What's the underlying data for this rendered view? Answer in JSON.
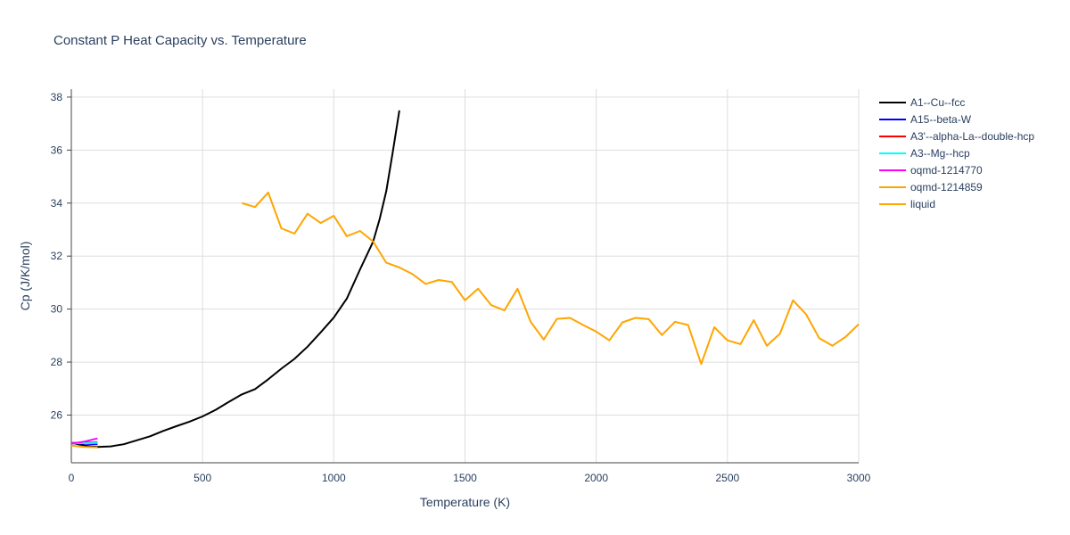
{
  "chart_data": {
    "type": "line",
    "title": "Constant P Heat Capacity vs. Temperature",
    "xlabel": "Temperature (K)",
    "ylabel": "Cp (J/K/mol)",
    "xlim": [
      0,
      3000
    ],
    "ylim": [
      24.2,
      38.3
    ],
    "xticks": [
      0,
      500,
      1000,
      1500,
      2000,
      2500,
      3000
    ],
    "xtick_labels": [
      "0",
      "500",
      "1000",
      "1500",
      "2000",
      "2500",
      "3000"
    ],
    "yticks": [
      26,
      28,
      30,
      32,
      34,
      36,
      38
    ],
    "ytick_labels": [
      "26",
      "28",
      "30",
      "32",
      "34",
      "36",
      "38"
    ],
    "grid": true,
    "legend_position": "right",
    "series": [
      {
        "name": "A1--Cu--fcc",
        "color": "#000000",
        "points": [
          [
            0,
            24.95
          ],
          [
            50,
            24.85
          ],
          [
            100,
            24.8
          ],
          [
            150,
            24.82
          ],
          [
            200,
            24.9
          ],
          [
            300,
            25.2
          ],
          [
            350,
            25.4
          ],
          [
            400,
            25.58
          ],
          [
            450,
            25.75
          ],
          [
            500,
            25.95
          ],
          [
            550,
            26.2
          ],
          [
            600,
            26.5
          ],
          [
            650,
            26.78
          ],
          [
            700,
            26.98
          ],
          [
            750,
            27.35
          ],
          [
            800,
            27.75
          ],
          [
            850,
            28.12
          ],
          [
            900,
            28.58
          ],
          [
            950,
            29.12
          ],
          [
            1000,
            29.68
          ],
          [
            1050,
            30.4
          ],
          [
            1100,
            31.5
          ],
          [
            1150,
            32.55
          ],
          [
            1175,
            33.4
          ],
          [
            1200,
            34.45
          ],
          [
            1225,
            35.95
          ],
          [
            1250,
            37.5
          ]
        ]
      },
      {
        "name": "A15--beta-W",
        "color": "#0000ff",
        "points": [
          [
            0,
            24.95
          ],
          [
            50,
            24.92
          ],
          [
            100,
            24.9
          ]
        ]
      },
      {
        "name": "A3'--alpha-La--double-hcp",
        "color": "#ff0000",
        "points": [
          [
            0,
            24.95
          ],
          [
            50,
            24.96
          ],
          [
            100,
            24.97
          ]
        ]
      },
      {
        "name": "A3--Mg--hcp",
        "color": "#00ffff",
        "points": [
          [
            0,
            24.93
          ],
          [
            50,
            24.94
          ],
          [
            100,
            24.95
          ]
        ]
      },
      {
        "name": "oqmd-1214770",
        "color": "#ff00ff",
        "points": [
          [
            0,
            24.92
          ],
          [
            50,
            25.0
          ],
          [
            100,
            25.12
          ]
        ]
      },
      {
        "name": "oqmd-1214859",
        "color": "#ffa500",
        "points": [
          [
            0,
            24.85
          ],
          [
            50,
            24.8
          ],
          [
            100,
            24.78
          ]
        ]
      },
      {
        "name": "liquid",
        "color": "#ffa500",
        "points": [
          [
            650,
            34.0
          ],
          [
            700,
            33.85
          ],
          [
            750,
            34.4
          ],
          [
            800,
            33.05
          ],
          [
            850,
            32.85
          ],
          [
            900,
            33.6
          ],
          [
            950,
            33.25
          ],
          [
            1000,
            33.52
          ],
          [
            1050,
            32.75
          ],
          [
            1100,
            32.95
          ],
          [
            1150,
            32.55
          ],
          [
            1200,
            31.75
          ],
          [
            1250,
            31.57
          ],
          [
            1300,
            31.32
          ],
          [
            1350,
            30.95
          ],
          [
            1400,
            31.1
          ],
          [
            1450,
            31.02
          ],
          [
            1500,
            30.33
          ],
          [
            1550,
            30.77
          ],
          [
            1600,
            30.15
          ],
          [
            1650,
            29.95
          ],
          [
            1700,
            30.77
          ],
          [
            1750,
            29.52
          ],
          [
            1800,
            28.85
          ],
          [
            1850,
            29.63
          ],
          [
            1900,
            29.67
          ],
          [
            1950,
            29.4
          ],
          [
            2000,
            29.15
          ],
          [
            2050,
            28.82
          ],
          [
            2100,
            29.5
          ],
          [
            2150,
            29.67
          ],
          [
            2200,
            29.62
          ],
          [
            2250,
            29.02
          ],
          [
            2300,
            29.52
          ],
          [
            2350,
            29.4
          ],
          [
            2400,
            27.93
          ],
          [
            2450,
            29.32
          ],
          [
            2500,
            28.82
          ],
          [
            2550,
            28.68
          ],
          [
            2600,
            29.58
          ],
          [
            2650,
            28.62
          ],
          [
            2700,
            29.07
          ],
          [
            2750,
            30.33
          ],
          [
            2800,
            29.8
          ],
          [
            2850,
            28.9
          ],
          [
            2900,
            28.62
          ],
          [
            2950,
            28.95
          ],
          [
            3000,
            29.43
          ]
        ]
      }
    ]
  }
}
